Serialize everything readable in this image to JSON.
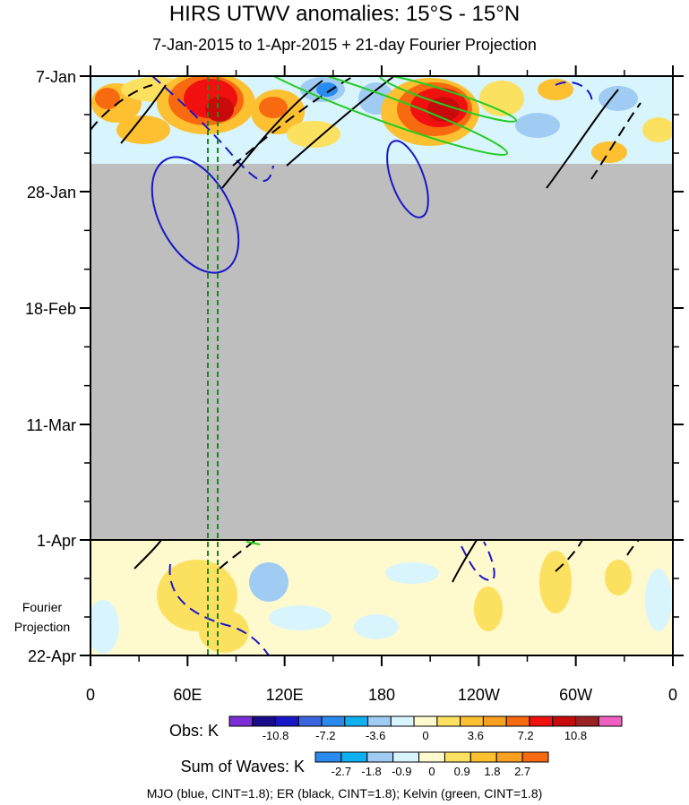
{
  "chart_data": {
    "type": "heatmap",
    "title": "HIRS UTWV anomalies: 15°S - 15°N",
    "subtitle": "7-Jan-2015 to 1-Apr-2015 + 21-day Fourier Projection",
    "x_ticks": [
      "0",
      "60E",
      "120E",
      "180",
      "120W",
      "60W",
      "0"
    ],
    "y_ticks": [
      "7-Jan",
      "28-Jan",
      "18-Feb",
      "11-Mar",
      "1-Apr",
      "22-Apr"
    ],
    "projection_label": [
      "Fourier",
      "Projection"
    ],
    "observed_period": [
      "7-Jan-2015",
      "1-Apr-2015"
    ],
    "missing_data_fill": "#bebebe",
    "obs_colorbar": {
      "label": "Obs: K",
      "ticks": [
        "-10.8",
        "-7.2",
        "-3.6",
        "0",
        "3.6",
        "7.2",
        "10.8"
      ],
      "colors": [
        "#7b2ed6",
        "#1a0a8c",
        "#1818c8",
        "#3a66dd",
        "#2a8aee",
        "#10b0f0",
        "#a0ccf4",
        "#d8f4fc",
        "#fffacd",
        "#fce060",
        "#fcc030",
        "#f8a020",
        "#f86a10",
        "#f01010",
        "#c80a0a",
        "#9a2222",
        "#f060c0"
      ]
    },
    "waves_colorbar": {
      "label": "Sum of Waves: K",
      "ticks": [
        "-2.7",
        "-1.8",
        "-0.9",
        "0",
        "0.9",
        "1.8",
        "2.7"
      ],
      "colors": [
        "#2a8aee",
        "#10b0f0",
        "#a0ccf4",
        "#d8f4fc",
        "#fffacd",
        "#fce060",
        "#fcc030",
        "#f8a020",
        "#f86a10"
      ]
    },
    "footer": "MJO (blue, CINT=1.8); ER (black, CINT=1.8); Kelvin (green, CINT=1.8)"
  }
}
